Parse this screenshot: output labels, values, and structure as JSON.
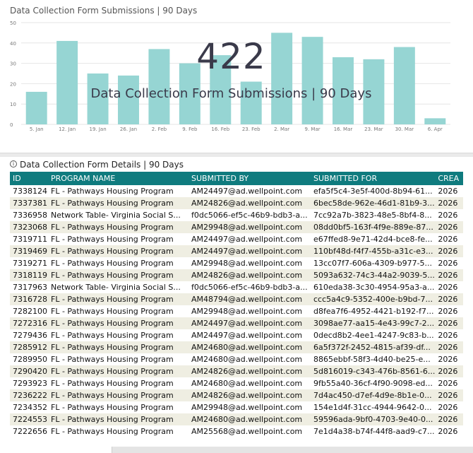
{
  "chart": {
    "title": "Data Collection Form Submissions | 90 Days",
    "bar_color": "#96d5d3",
    "kpi_value": "422",
    "kpi_label": "Data Collection Form Submissions | 90 Days"
  },
  "chart_data": {
    "type": "bar",
    "title": "Data Collection Form Submissions | 90 Days",
    "categories": [
      "5. Jan",
      "12. Jan",
      "19. Jan",
      "26. Jan",
      "2. Feb",
      "9. Feb",
      "16. Feb",
      "23. Feb",
      "2. Mar",
      "9. Mar",
      "16. Mar",
      "23. Mar",
      "30. Mar",
      "6. Apr"
    ],
    "values": [
      16,
      41,
      25,
      24,
      37,
      30,
      34,
      21,
      45,
      43,
      33,
      32,
      38,
      3
    ],
    "ylim": [
      0,
      50
    ],
    "yticks": [
      0,
      10,
      20,
      30,
      40,
      50
    ],
    "grid": true
  },
  "table": {
    "title": "Data Collection Form Details | 90 Days",
    "headers": [
      "ID",
      "PROGRAM NAME",
      "SUBMITTED BY",
      "SUBMITTED FOR",
      "CREA"
    ],
    "rows": [
      [
        "7338124",
        "FL - Pathways Housing Program",
        "AM24497@ad.wellpoint.com",
        "efa5f5c4-3e5f-400d-8b94-61...",
        "2026"
      ],
      [
        "7337381",
        "FL - Pathways Housing Program",
        "AM24826@ad.wellpoint.com",
        "6bec58de-962e-46d1-81b9-3...",
        "2026"
      ],
      [
        "7336958",
        "Network Table- Virginia Social S...",
        "f0dc5066-ef5c-46b9-bdb3-a...",
        "7cc92a7b-3823-48e5-8bf4-8...",
        "2026"
      ],
      [
        "7323068",
        "FL - Pathways Housing Program",
        "AM29948@ad.wellpoint.com",
        "08dd0bf5-163f-4f9e-889e-87...",
        "2026"
      ],
      [
        "7319711",
        "FL - Pathways Housing Program",
        "AM24497@ad.wellpoint.com",
        "e67ffed8-9e71-42d4-bce8-fe...",
        "2026"
      ],
      [
        "7319469",
        "FL - Pathways Housing Program",
        "AM24497@ad.wellpoint.com",
        "110bf48d-f4f7-455b-a31c-e3...",
        "2026"
      ],
      [
        "7319271",
        "FL - Pathways Housing Program",
        "AM29948@ad.wellpoint.com",
        "13cc07f7-606a-4309-b977-5...",
        "2026"
      ],
      [
        "7318119",
        "FL - Pathways Housing Program",
        "AM24826@ad.wellpoint.com",
        "5093a632-74c3-44a2-9039-5...",
        "2026"
      ],
      [
        "7317963",
        "Network Table- Virginia Social S...",
        "f0dc5066-ef5c-46b9-bdb3-a...",
        "610eda38-3c30-4954-95a3-a...",
        "2026"
      ],
      [
        "7316728",
        "FL - Pathways Housing Program",
        "AM48794@ad.wellpoint.com",
        "ccc5a4c9-5352-400e-b9bd-7...",
        "2026"
      ],
      [
        "7282100",
        "FL - Pathways Housing Program",
        "AM29948@ad.wellpoint.com",
        "d8fea7f6-4952-4421-b192-f7...",
        "2026"
      ],
      [
        "7272316",
        "FL - Pathways Housing Program",
        "AM24497@ad.wellpoint.com",
        "3098ae77-aa15-4e43-99c7-2...",
        "2026"
      ],
      [
        "7279436",
        "FL - Pathways Housing Program",
        "AM24497@ad.wellpoint.com",
        "0decd8b2-4ee1-4247-9c83-b...",
        "2026"
      ],
      [
        "7285912",
        "FL - Pathways Housing Program",
        "AM24680@ad.wellpoint.com",
        "6a5f372f-2452-4815-af39-df...",
        "2026"
      ],
      [
        "7289950",
        "FL - Pathways Housing Program",
        "AM24680@ad.wellpoint.com",
        "8865ebbf-58f3-4d40-be25-e...",
        "2026"
      ],
      [
        "7290420",
        "FL - Pathways Housing Program",
        "AM24826@ad.wellpoint.com",
        "5d816019-c343-476b-8561-6...",
        "2026"
      ],
      [
        "7293923",
        "FL - Pathways Housing Program",
        "AM24680@ad.wellpoint.com",
        "9fb55a40-36cf-4f90-9098-ed...",
        "2026"
      ],
      [
        "7236222",
        "FL - Pathways Housing Program",
        "AM24826@ad.wellpoint.com",
        "7d4ac450-d7ef-4d9e-8b1e-0...",
        "2026"
      ],
      [
        "7234352",
        "FL - Pathways Housing Program",
        "AM29948@ad.wellpoint.com",
        "154e1d4f-31cc-4944-9642-0...",
        "2026"
      ],
      [
        "7224553",
        "FL - Pathways Housing Program",
        "AM24680@ad.wellpoint.com",
        "59596ada-9bf0-4703-9e40-0...",
        "2026"
      ],
      [
        "7222656",
        "FL - Pathways Housing Program",
        "AM25568@ad.wellpoint.com",
        "7e1d4a38-b74f-44f8-aad9-c7...",
        "2026"
      ]
    ]
  },
  "icons": {
    "info": "info-icon"
  }
}
